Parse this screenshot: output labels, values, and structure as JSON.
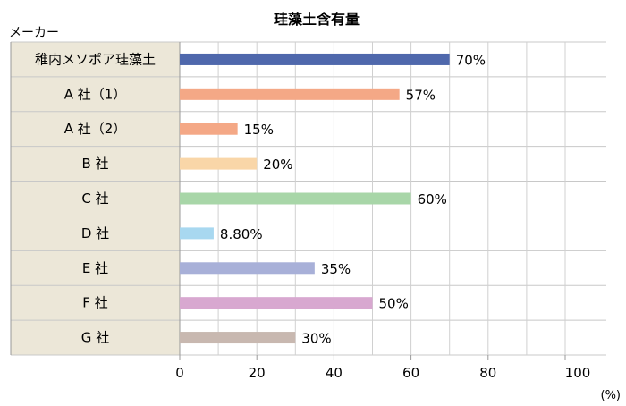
{
  "chart_data": {
    "type": "bar",
    "orientation": "horizontal",
    "title": "珪藻土含有量",
    "ylabel": "メーカー",
    "xlabel": "",
    "x_unit": "(%)",
    "xlim": [
      0,
      100
    ],
    "xticks": [
      0,
      20,
      40,
      60,
      80,
      100
    ],
    "grid": true,
    "categories": [
      "稚内メソポア珪藻土",
      "A 社（1）",
      "A 社（2）",
      "B 社",
      "C 社",
      "D 社",
      "E 社",
      "F 社",
      "G 社"
    ],
    "values": [
      70,
      57,
      15,
      20,
      60,
      8.8,
      35,
      50,
      30
    ],
    "value_labels": [
      "70%",
      "57%",
      "15%",
      "20%",
      "60%",
      "8.80%",
      "35%",
      "50%",
      "30%"
    ],
    "colors": [
      "#4f68ac",
      "#f4a886",
      "#f4a886",
      "#f9d6a8",
      "#a8d6a8",
      "#a8d8f0",
      "#a8b0d8",
      "#d8a8d0",
      "#c8b8b0"
    ],
    "category_panel_color": "#ece7d8"
  }
}
